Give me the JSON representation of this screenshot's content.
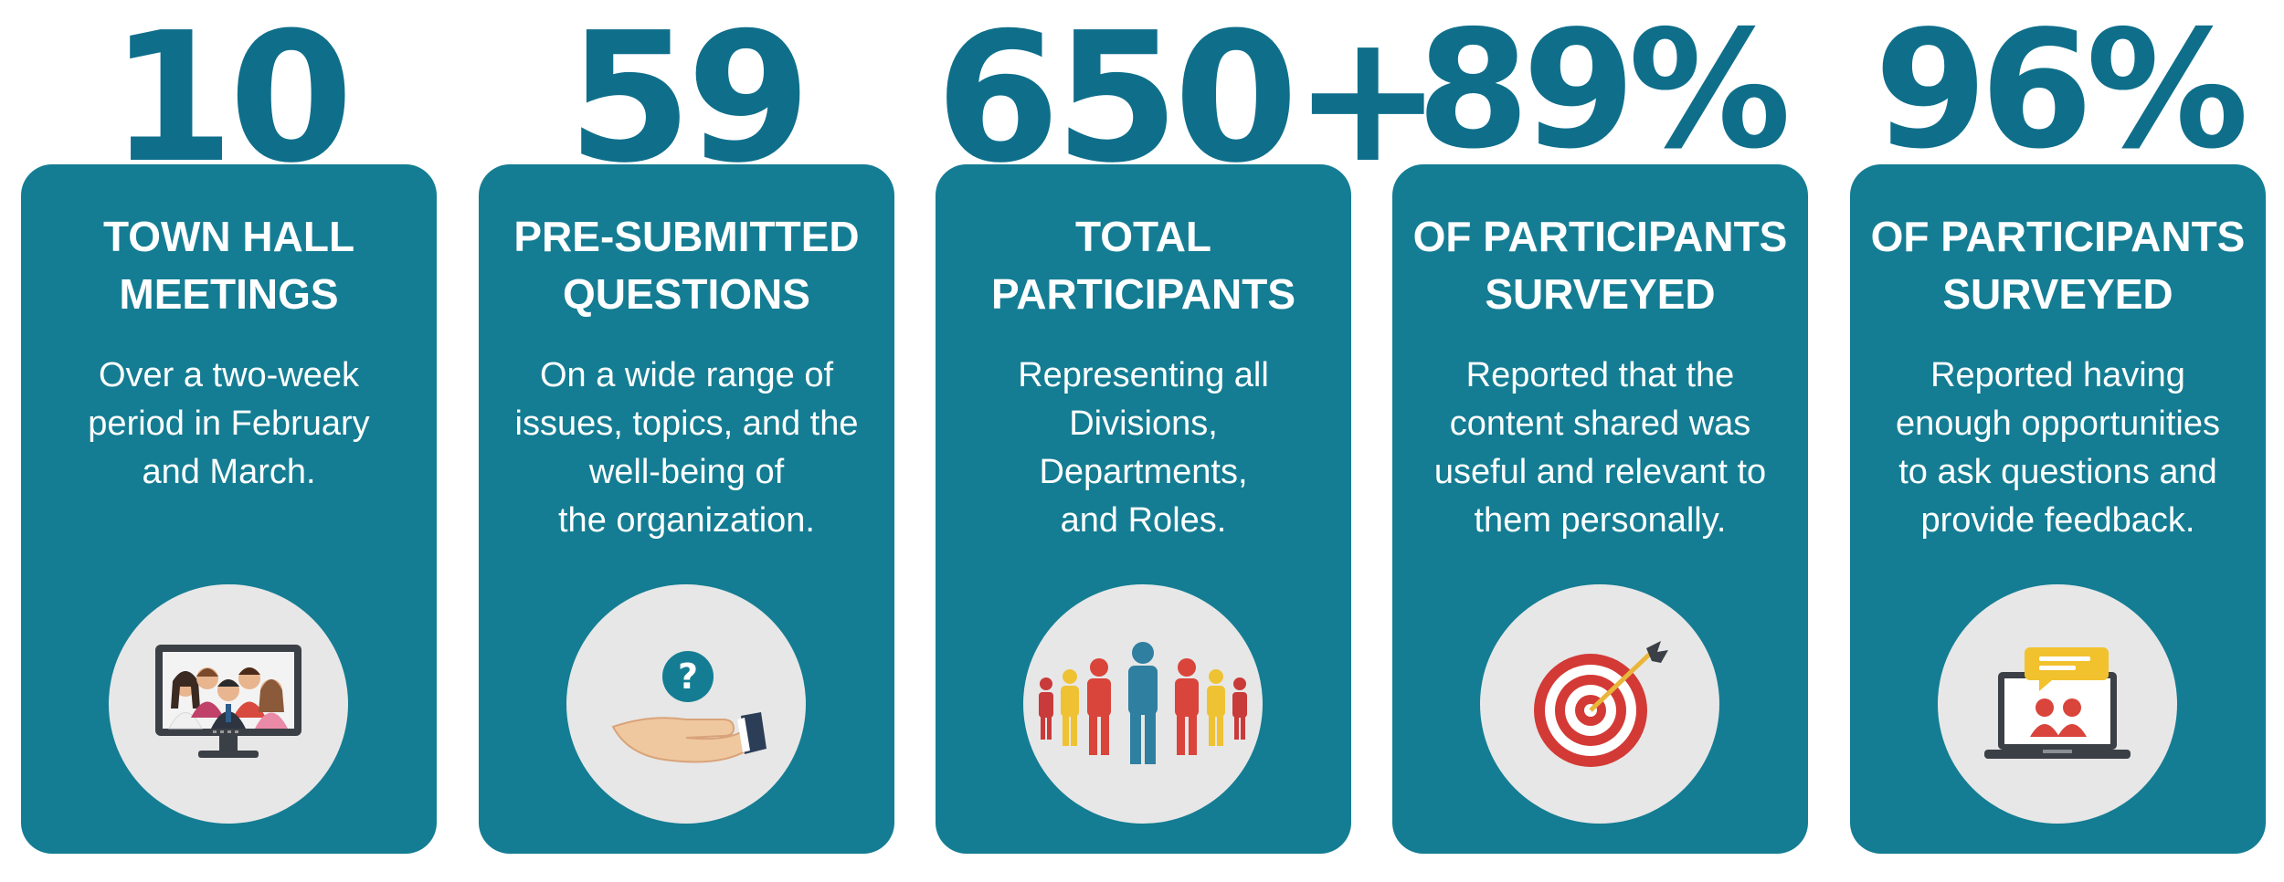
{
  "cards": [
    {
      "stat": "10",
      "title_lines": [
        "TOWN HALL",
        "MEETINGS"
      ],
      "desc_lines": [
        "Over a two-week",
        "period in February",
        "and March."
      ],
      "icon": "video-conference-icon"
    },
    {
      "stat": "59",
      "title_lines": [
        "PRE-SUBMITTED",
        "QUESTIONS"
      ],
      "desc_lines": [
        "On a wide range of",
        "issues, topics, and the",
        "well-being of",
        "the organization."
      ],
      "icon": "question-hand-icon"
    },
    {
      "stat": "650+",
      "title_lines": [
        "TOTAL",
        "PARTICIPANTS"
      ],
      "desc_lines": [
        "Representing all",
        "Divisions,",
        "Departments,",
        "and Roles."
      ],
      "icon": "crowd-icon"
    },
    {
      "stat": "89%",
      "title_lines": [
        "OF PARTICIPANTS",
        "SURVEYED"
      ],
      "desc_lines": [
        "Reported that the",
        "content shared was",
        "useful and relevant to",
        "them personally."
      ],
      "icon": "target-icon"
    },
    {
      "stat": "96%",
      "title_lines": [
        "OF PARTICIPANTS",
        "SURVEYED"
      ],
      "desc_lines": [
        "Reported having",
        "enough opportunities",
        "to ask questions and",
        "provide feedback."
      ],
      "icon": "laptop-chat-icon"
    }
  ],
  "colors": {
    "card": "#147d93",
    "stat_text": "#0f6f8b",
    "badge_bg": "#e7e7e7"
  }
}
